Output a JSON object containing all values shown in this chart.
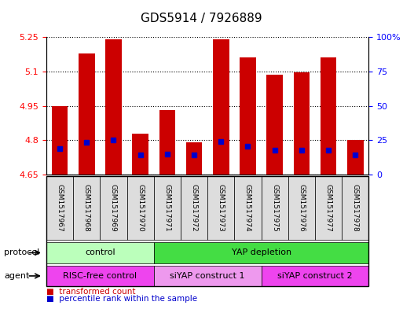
{
  "title": "GDS5914 / 7926889",
  "samples": [
    "GSM1517967",
    "GSM1517968",
    "GSM1517969",
    "GSM1517970",
    "GSM1517971",
    "GSM1517972",
    "GSM1517973",
    "GSM1517974",
    "GSM1517975",
    "GSM1517976",
    "GSM1517977",
    "GSM1517978"
  ],
  "bar_values": [
    4.95,
    5.18,
    5.24,
    4.83,
    4.93,
    4.79,
    5.24,
    5.16,
    5.085,
    5.095,
    5.16,
    4.8
  ],
  "blue_marker_values": [
    4.765,
    4.79,
    4.8,
    4.735,
    4.74,
    4.735,
    4.795,
    4.775,
    4.755,
    4.755,
    4.755,
    4.735
  ],
  "bar_bottom": 4.65,
  "ymin": 4.65,
  "ymax": 5.25,
  "y_ticks": [
    4.65,
    4.8,
    4.95,
    5.1,
    5.25
  ],
  "y_tick_labels": [
    "4.65",
    "4.8",
    "4.95",
    "5.1",
    "5.25"
  ],
  "right_yticks": [
    0,
    25,
    50,
    75,
    100
  ],
  "right_ytick_labels": [
    "0",
    "25",
    "50",
    "75",
    "100%"
  ],
  "bar_color": "#cc0000",
  "blue_marker_color": "#0000cc",
  "grid_color": "#000000",
  "protocol_groups": [
    {
      "label": "control",
      "start": 0,
      "end": 4,
      "color": "#bbffbb"
    },
    {
      "label": "YAP depletion",
      "start": 4,
      "end": 12,
      "color": "#44dd44"
    }
  ],
  "agent_groups": [
    {
      "label": "RISC-free control",
      "start": 0,
      "end": 4,
      "color": "#ee44ee"
    },
    {
      "label": "siYAP construct 1",
      "start": 4,
      "end": 8,
      "color": "#ee99ee"
    },
    {
      "label": "siYAP construct 2",
      "start": 8,
      "end": 12,
      "color": "#ee44ee"
    }
  ],
  "legend_items": [
    {
      "label": "transformed count",
      "color": "#cc0000"
    },
    {
      "label": "percentile rank within the sample",
      "color": "#0000cc"
    }
  ],
  "protocol_label": "protocol",
  "agent_label": "agent",
  "title_fontsize": 11,
  "tick_fontsize": 8,
  "label_fontsize": 9,
  "bar_width": 0.6,
  "sample_bg_color": "#dddddd"
}
